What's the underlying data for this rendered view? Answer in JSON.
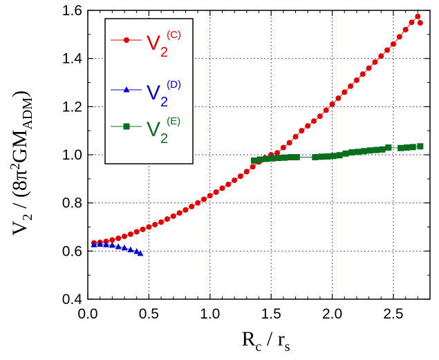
{
  "chart_data": {
    "type": "scatter",
    "xlabel": {
      "main": "R",
      "sub1": "c",
      "sep": " / r",
      "sub2": "s"
    },
    "ylabel": {
      "main": "V",
      "sub1": "2",
      "part1": " / (8π",
      "sup": "2",
      "part2": "GM",
      "sub2": "ADM",
      "close": ")"
    },
    "xlim": [
      0,
      2.8
    ],
    "ylim": [
      0.4,
      1.6
    ],
    "xticks": [
      0,
      0.5,
      1.0,
      1.5,
      2.0,
      2.5
    ],
    "yticks": [
      0.4,
      0.6,
      0.8,
      1.0,
      1.2,
      1.4,
      1.6
    ],
    "xtick_labels": [
      "0.0",
      "0.5",
      "1.0",
      "1.5",
      "2.0",
      "2.5"
    ],
    "ytick_labels": [
      "0.4",
      "0.6",
      "0.8",
      "1.0",
      "1.2",
      "1.4",
      "1.6"
    ],
    "grid": true,
    "legend_position": "top-left",
    "series": [
      {
        "name": "V2(C)",
        "label_main": "V",
        "label_sub": "2",
        "label_sup": "(C)",
        "color": "#e00000",
        "marker": "circle",
        "line": true,
        "x": [
          0.05,
          0.1,
          0.15,
          0.2,
          0.25,
          0.3,
          0.35,
          0.4,
          0.45,
          0.5,
          0.55,
          0.6,
          0.65,
          0.7,
          0.75,
          0.8,
          0.85,
          0.9,
          0.95,
          1.0,
          1.05,
          1.1,
          1.15,
          1.2,
          1.25,
          1.3,
          1.35,
          1.4,
          1.45,
          1.5,
          1.55,
          1.6,
          1.65,
          1.7,
          1.75,
          1.8,
          1.85,
          1.9,
          1.95,
          2.0,
          2.05,
          2.1,
          2.15,
          2.2,
          2.25,
          2.3,
          2.35,
          2.4,
          2.45,
          2.5,
          2.55,
          2.6,
          2.65,
          2.7,
          2.72
        ],
        "y": [
          0.634,
          0.636,
          0.64,
          0.646,
          0.653,
          0.661,
          0.67,
          0.68,
          0.69,
          0.7,
          0.71,
          0.72,
          0.733,
          0.745,
          0.758,
          0.771,
          0.785,
          0.8,
          0.815,
          0.83,
          0.845,
          0.861,
          0.877,
          0.894,
          0.911,
          0.93,
          0.95,
          0.97,
          0.987,
          1.0,
          1.008,
          1.03,
          1.05,
          1.075,
          1.1,
          1.12,
          1.14,
          1.16,
          1.185,
          1.21,
          1.235,
          1.26,
          1.285,
          1.31,
          1.335,
          1.36,
          1.385,
          1.41,
          1.435,
          1.46,
          1.49,
          1.52,
          1.55,
          1.575,
          1.548
        ]
      },
      {
        "name": "V2(D)",
        "label_main": "V",
        "label_sub": "2",
        "label_sup": "(D)",
        "color": "#0000cc",
        "marker": "triangle",
        "line": true,
        "x": [
          0.05,
          0.1,
          0.15,
          0.2,
          0.25,
          0.3,
          0.35,
          0.4,
          0.43
        ],
        "y": [
          0.626,
          0.628,
          0.626,
          0.624,
          0.618,
          0.613,
          0.605,
          0.598,
          0.59
        ]
      },
      {
        "name": "V2(E)",
        "label_main": "V",
        "label_sub": "2",
        "label_sup": "(E)",
        "color": "#0a6e1e",
        "marker": "square",
        "line": true,
        "x": [
          1.36,
          1.41,
          1.46,
          1.51,
          1.56,
          1.61,
          1.66,
          1.71,
          1.86,
          1.91,
          1.96,
          2.01,
          2.06,
          2.11,
          2.16,
          2.21,
          2.26,
          2.31,
          2.36,
          2.41,
          2.46,
          2.56,
          2.61,
          2.66,
          2.72
        ],
        "y": [
          0.976,
          0.98,
          0.983,
          0.985,
          0.987,
          0.988,
          0.99,
          0.99,
          0.99,
          0.992,
          0.993,
          0.995,
          0.998,
          1.005,
          1.01,
          1.012,
          1.015,
          1.018,
          1.02,
          1.022,
          1.03,
          1.028,
          1.03,
          1.032,
          1.035
        ]
      }
    ]
  }
}
